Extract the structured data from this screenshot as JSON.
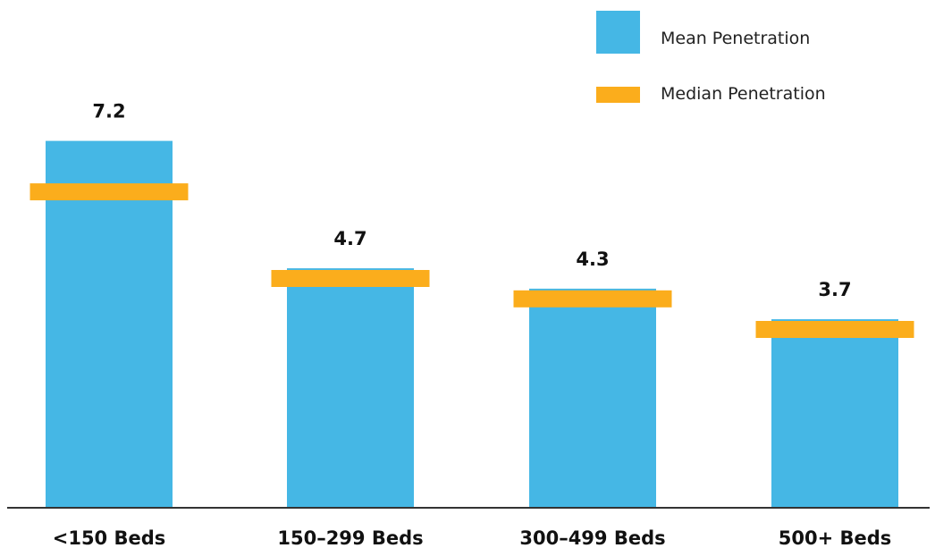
{
  "chart_data": {
    "type": "bar",
    "categories": [
      "<150 Beds",
      "150–299 Beds",
      "300–499 Beds",
      "500+ Beds"
    ],
    "series": [
      {
        "name": "Mean Penetration",
        "values": [
          7.2,
          4.7,
          4.3,
          3.7
        ],
        "labels": [
          "7.2",
          "4.7",
          "4.3",
          "3.7"
        ],
        "color": "#45b7e5"
      },
      {
        "name": "Median Penetration",
        "values": [
          6.2,
          4.5,
          4.1,
          3.5
        ],
        "color": "#fbad1c"
      }
    ],
    "ylim": [
      0,
      9
    ],
    "grid": false,
    "legend_position": "top-right",
    "baseline_color": "#333333",
    "label_color": "#111111"
  }
}
